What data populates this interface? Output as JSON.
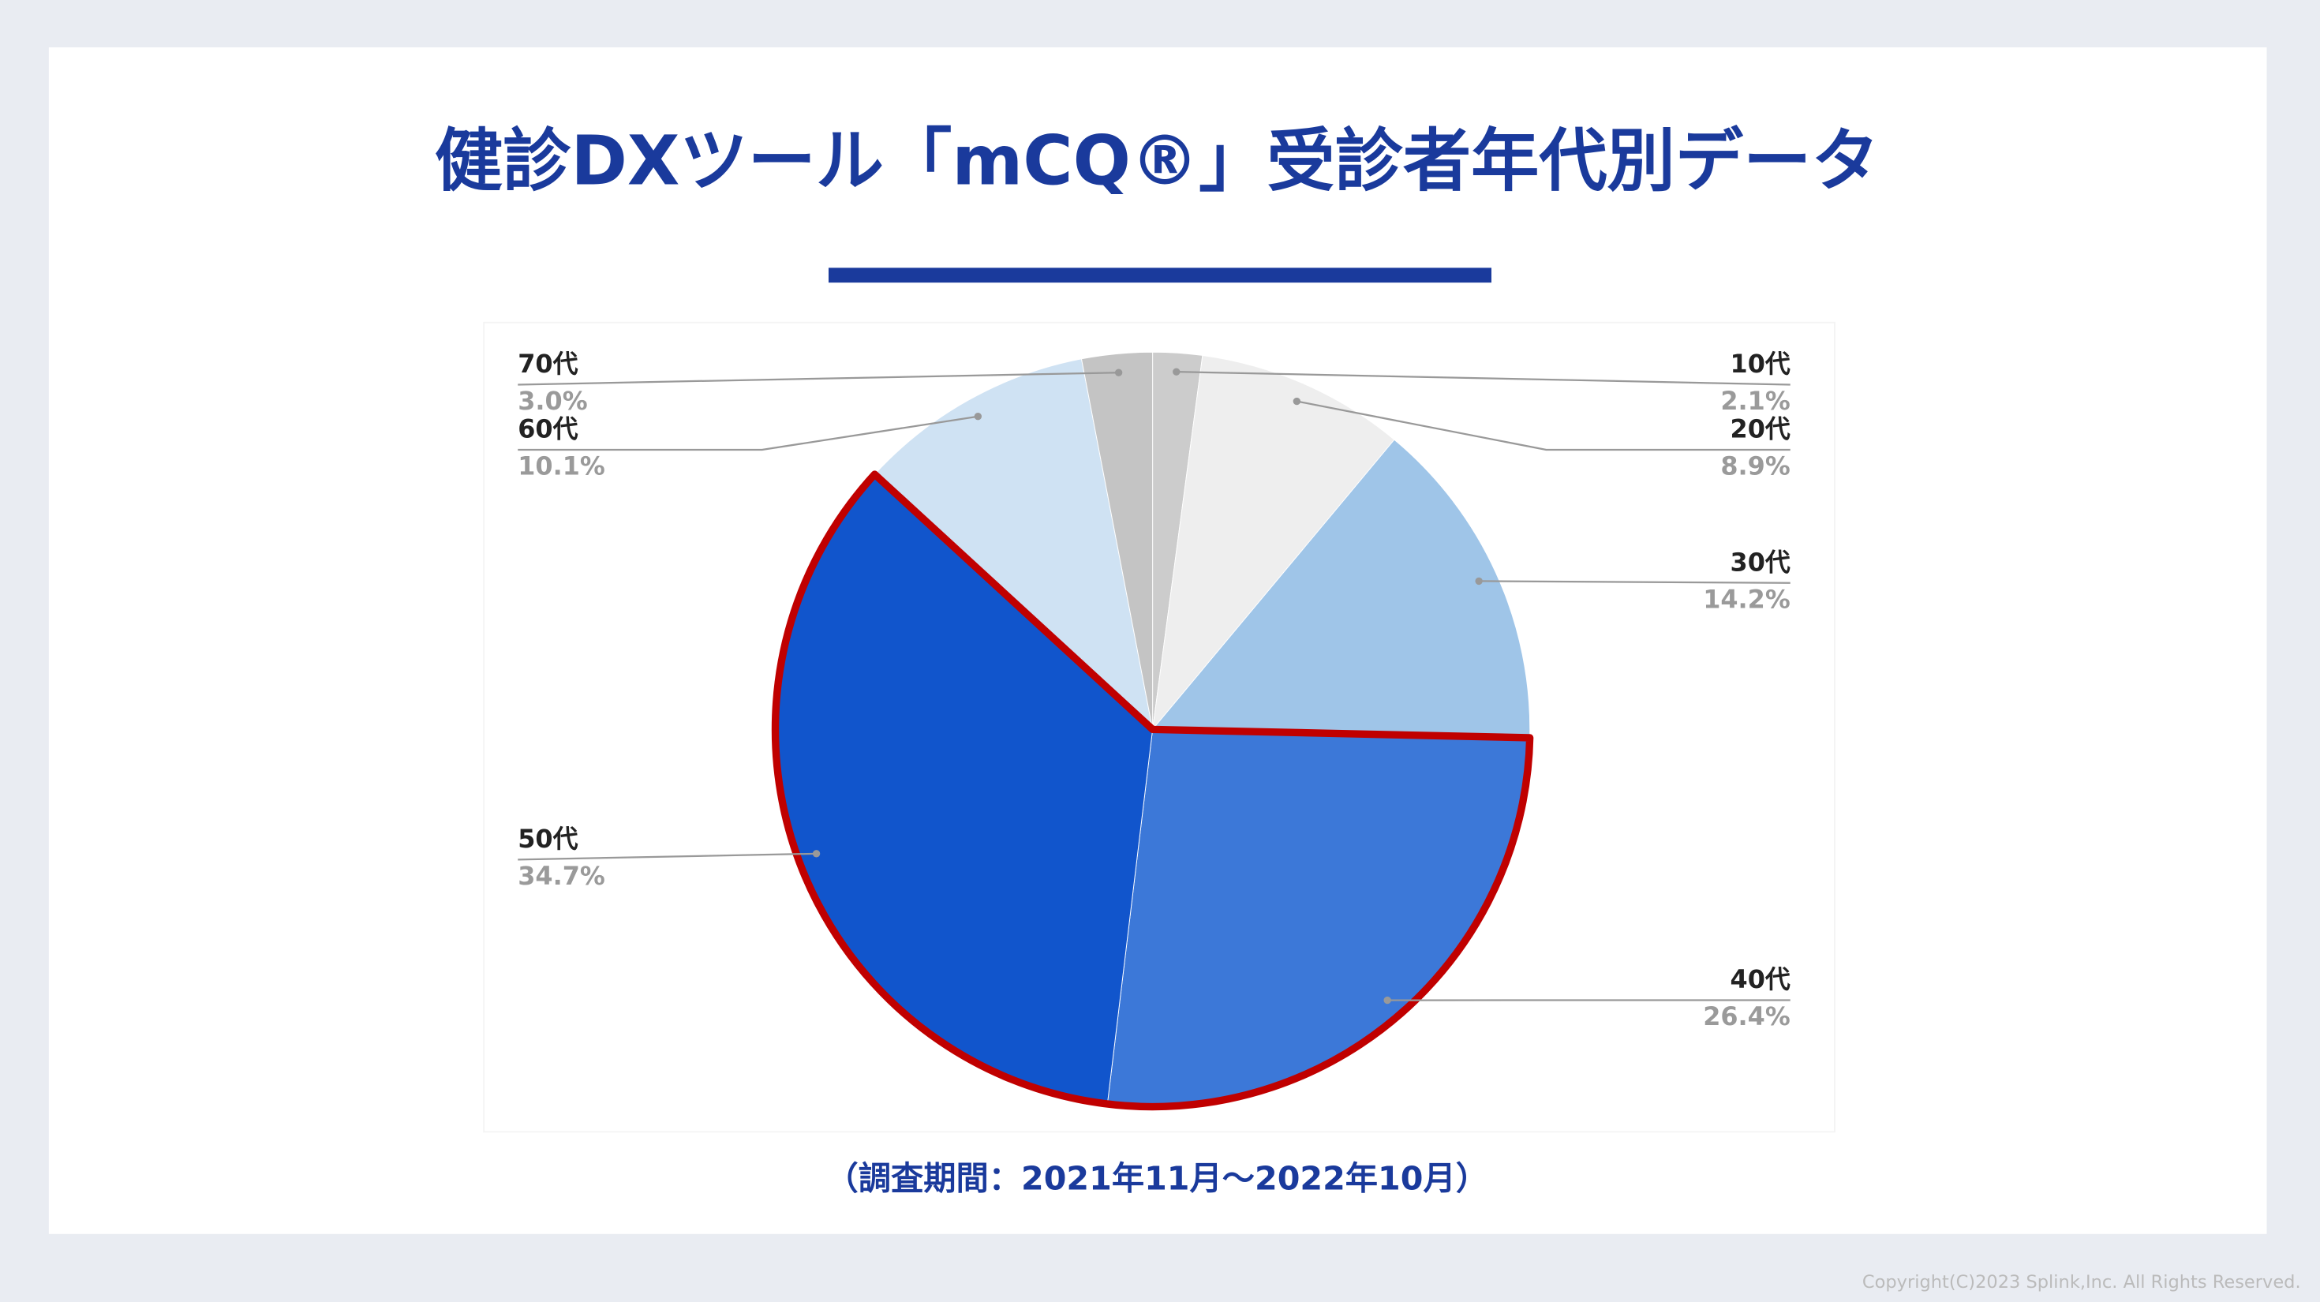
{
  "chart_data": {
    "type": "pie",
    "title": "健診DXツール「mCQ®」受診者年代別データ",
    "categories": [
      "10代",
      "20代",
      "30代",
      "40代",
      "50代",
      "60代",
      "70代"
    ],
    "values": [
      2.1,
      8.9,
      14.2,
      26.4,
      34.7,
      10.1,
      3.0
    ],
    "value_labels": [
      "2.1%",
      "8.9%",
      "14.2%",
      "26.4%",
      "34.7%",
      "10.1%",
      "3.0%"
    ],
    "colors": [
      "#cccccc",
      "#eeeeee",
      "#9fc5e8",
      "#3c78d8",
      "#1155cc",
      "#cfe2f3",
      "#c4c4c4"
    ],
    "highlighted": [
      3,
      4
    ],
    "highlight_color": "#c00000",
    "note": "（調査期間：2021年11月〜2022年10月）"
  },
  "footer": {
    "copyright": "Copyright(C)2023 Splink,Inc. All Rights Reserved."
  }
}
